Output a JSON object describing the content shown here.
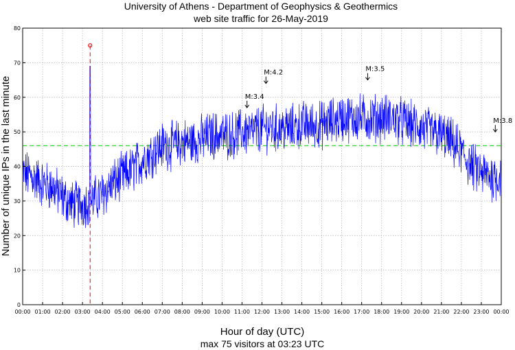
{
  "chart_data": {
    "type": "line",
    "title": "University of Athens - Department of Geophysics & Geothermics",
    "subtitle": "web site traffic for 26-May-2019",
    "xlabel": "Hour of day (UTC)",
    "xlabel_sub": "max 75 visitors at 03:23 UTC",
    "ylabel": "Number of unique IPs in the last minute",
    "xlim": [
      0,
      24
    ],
    "ylim": [
      0,
      80
    ],
    "x_ticks": [
      "00:00",
      "01:00",
      "02:00",
      "03:00",
      "04:00",
      "05:00",
      "06:00",
      "07:00",
      "08:00",
      "09:00",
      "10:00",
      "11:00",
      "12:00",
      "13:00",
      "14:00",
      "15:00",
      "16:00",
      "17:00",
      "18:00",
      "19:00",
      "20:00",
      "21:00",
      "22:00",
      "23:00",
      "00:00"
    ],
    "y_ticks": [
      0,
      10,
      20,
      30,
      40,
      50,
      60,
      70,
      80
    ],
    "grid": true,
    "series": [
      {
        "color": "#0000ff",
        "x_hours": [
          0,
          0.5,
          1,
          1.5,
          2,
          2.5,
          3,
          3.3,
          3.5,
          4,
          4.5,
          5,
          5.5,
          6,
          6.5,
          7,
          7.5,
          8,
          8.5,
          9,
          9.5,
          10,
          10.5,
          11,
          11.5,
          12,
          12.5,
          13,
          13.5,
          14,
          14.5,
          15,
          15.5,
          16,
          16.5,
          17,
          17.5,
          18,
          18.5,
          19,
          19.5,
          20,
          20.5,
          21,
          21.5,
          22,
          22.5,
          23,
          23.5,
          24
        ],
        "values": [
          38,
          37,
          35,
          34,
          31,
          29,
          29,
          30,
          30,
          32,
          35,
          37,
          39,
          42,
          44,
          46,
          46,
          47,
          47,
          48,
          49,
          49,
          49,
          50,
          50,
          51,
          51,
          51,
          51,
          52,
          52,
          52,
          53,
          54,
          54,
          54,
          54,
          54,
          54,
          53,
          52,
          51,
          50,
          49,
          47,
          44,
          40,
          38,
          37,
          37
        ]
      }
    ],
    "peak": {
      "time_hours": 3.383,
      "value": 75,
      "color": "#ff0000"
    },
    "mean_line": {
      "value": 46,
      "color": "#00cc00"
    },
    "earthquakes": [
      {
        "label": "M:3.4",
        "time_hours": 11.25,
        "level": 57
      },
      {
        "label": "M:4.2",
        "time_hours": 12.2,
        "level": 64
      },
      {
        "label": "M:3.5",
        "time_hours": 17.3,
        "level": 65
      },
      {
        "label": "M:3.8",
        "time_hours": 23.7,
        "level": 50
      }
    ]
  }
}
